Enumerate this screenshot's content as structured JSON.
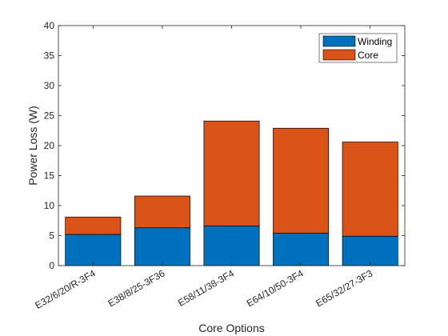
{
  "chart_data": {
    "type": "bar",
    "stacked": true,
    "title": "",
    "xlabel": "Core Options",
    "ylabel": "Power Loss (W)",
    "ylim": [
      0,
      40
    ],
    "yticks": [
      0,
      5,
      10,
      15,
      20,
      25,
      30,
      35,
      40
    ],
    "categories": [
      "E32/6/20/R-3F4",
      "E38/8/25-3F36",
      "E58/11/38-3F4",
      "E64/10/50-3F4",
      "E65/32/27-3F3"
    ],
    "series": [
      {
        "name": "Winding",
        "color": "#0072BD",
        "values": [
          5.2,
          6.3,
          6.6,
          5.4,
          4.9
        ]
      },
      {
        "name": "Core",
        "color": "#D95319",
        "values": [
          2.9,
          5.3,
          17.5,
          17.5,
          15.7
        ]
      }
    ],
    "legend_position": "top-right",
    "grid": false
  }
}
